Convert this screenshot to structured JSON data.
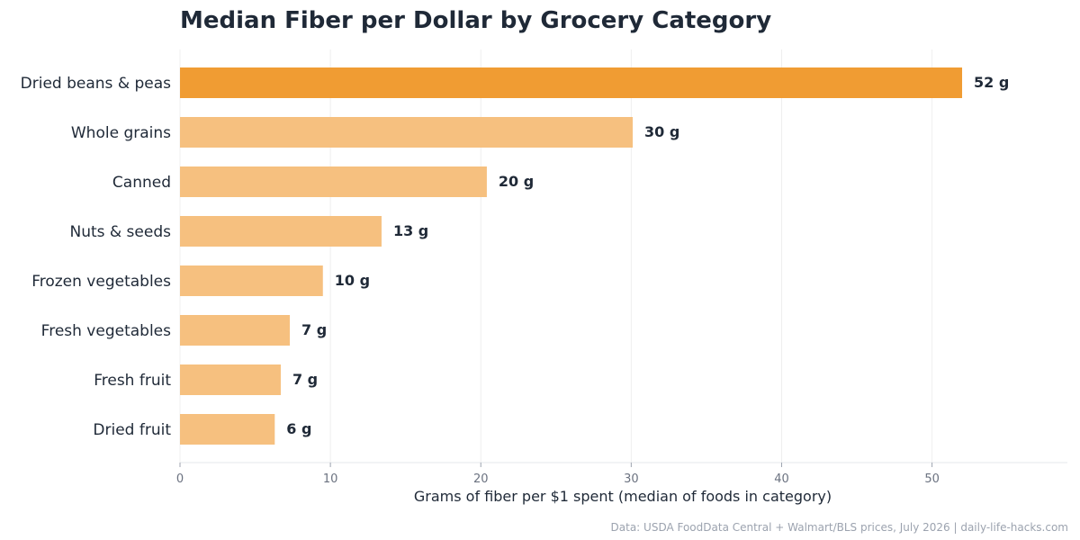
{
  "chart_data": {
    "type": "bar",
    "orientation": "horizontal",
    "title": "Median Fiber per Dollar by Grocery Category",
    "xlabel": "Grams of fiber per $1 spent (median of foods in category)",
    "ylabel": "",
    "categories": [
      "Dried beans & peas",
      "Whole grains",
      "Canned",
      "Nuts & seeds",
      "Frozen vegetables",
      "Fresh vegetables",
      "Fresh fruit",
      "Dried fruit"
    ],
    "values": [
      52,
      30.1,
      20.4,
      13.4,
      9.5,
      7.3,
      6.7,
      6.3
    ],
    "value_labels": [
      "52 g",
      "30 g",
      "20 g",
      "13 g",
      "10 g",
      "7 g",
      "7 g",
      "6 g"
    ],
    "xlim": [
      0,
      59
    ],
    "xticks": [
      0,
      10,
      20,
      30,
      40,
      50
    ],
    "grid": "vertical",
    "highlight_index": 0,
    "colors": {
      "highlight": "#f09c33",
      "bar": "#f6c07f",
      "grid": "#efefef",
      "text": "#1f2937"
    }
  },
  "footer": {
    "source": "Data: USDA FoodData Central + Walmart/BLS prices, July 2026  |  daily-life-hacks.com"
  }
}
